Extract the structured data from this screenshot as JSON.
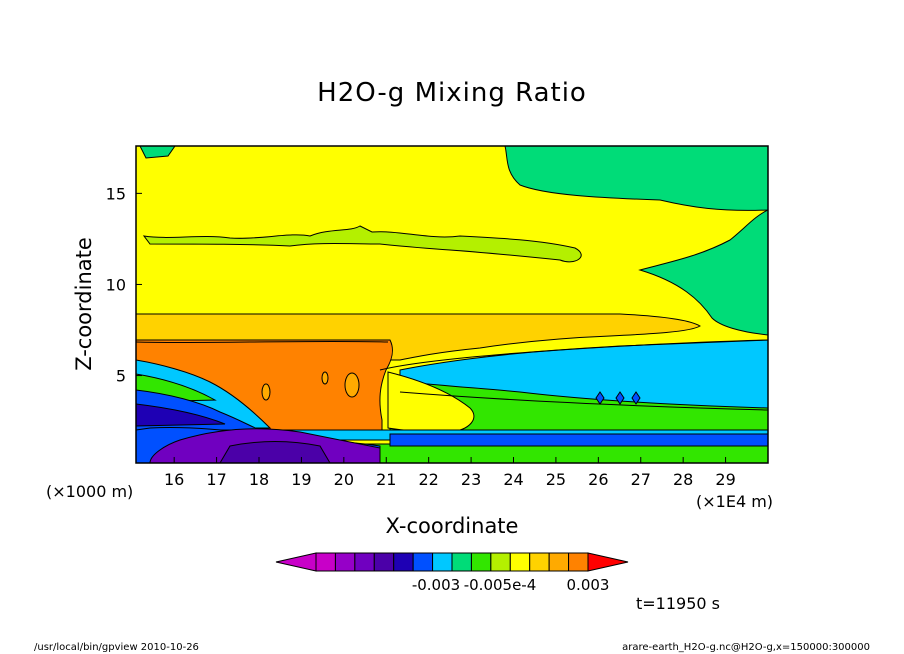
{
  "chart_data": {
    "type": "heatmap",
    "title": "H2O-g Mixing Ratio",
    "xlabel": "X-coordinate",
    "ylabel": "Z-coordinate",
    "x_unit_left": "(×1000 m)",
    "x_unit_right": "(×1E4 m)",
    "x_ticks": [
      16,
      17,
      18,
      19,
      20,
      21,
      22,
      23,
      24,
      25,
      26,
      27,
      28,
      29
    ],
    "y_ticks": [
      5,
      10,
      15
    ],
    "xlim": [
      15.1,
      30
    ],
    "ylim": [
      0.2,
      17.6
    ],
    "colorbar": {
      "tick_labels": [
        "-0.003",
        "-0.005e-4",
        "0.003"
      ],
      "colors": [
        "#c800c8",
        "#c800c8",
        "#9600c8",
        "#7000c0",
        "#4b00a8",
        "#1e00b4",
        "#0050ff",
        "#00c8ff",
        "#00dc78",
        "#32e600",
        "#b4f000",
        "#ffff00",
        "#ffd200",
        "#ffaa00",
        "#ff8200",
        "#ff0000"
      ]
    },
    "time_label": "t=11950 s"
  },
  "footer": {
    "left": "/usr/local/bin/gpview  2010-10-26",
    "right": "arare-earth_H2O-g.nc@H2O-g,x=150000:300000"
  }
}
